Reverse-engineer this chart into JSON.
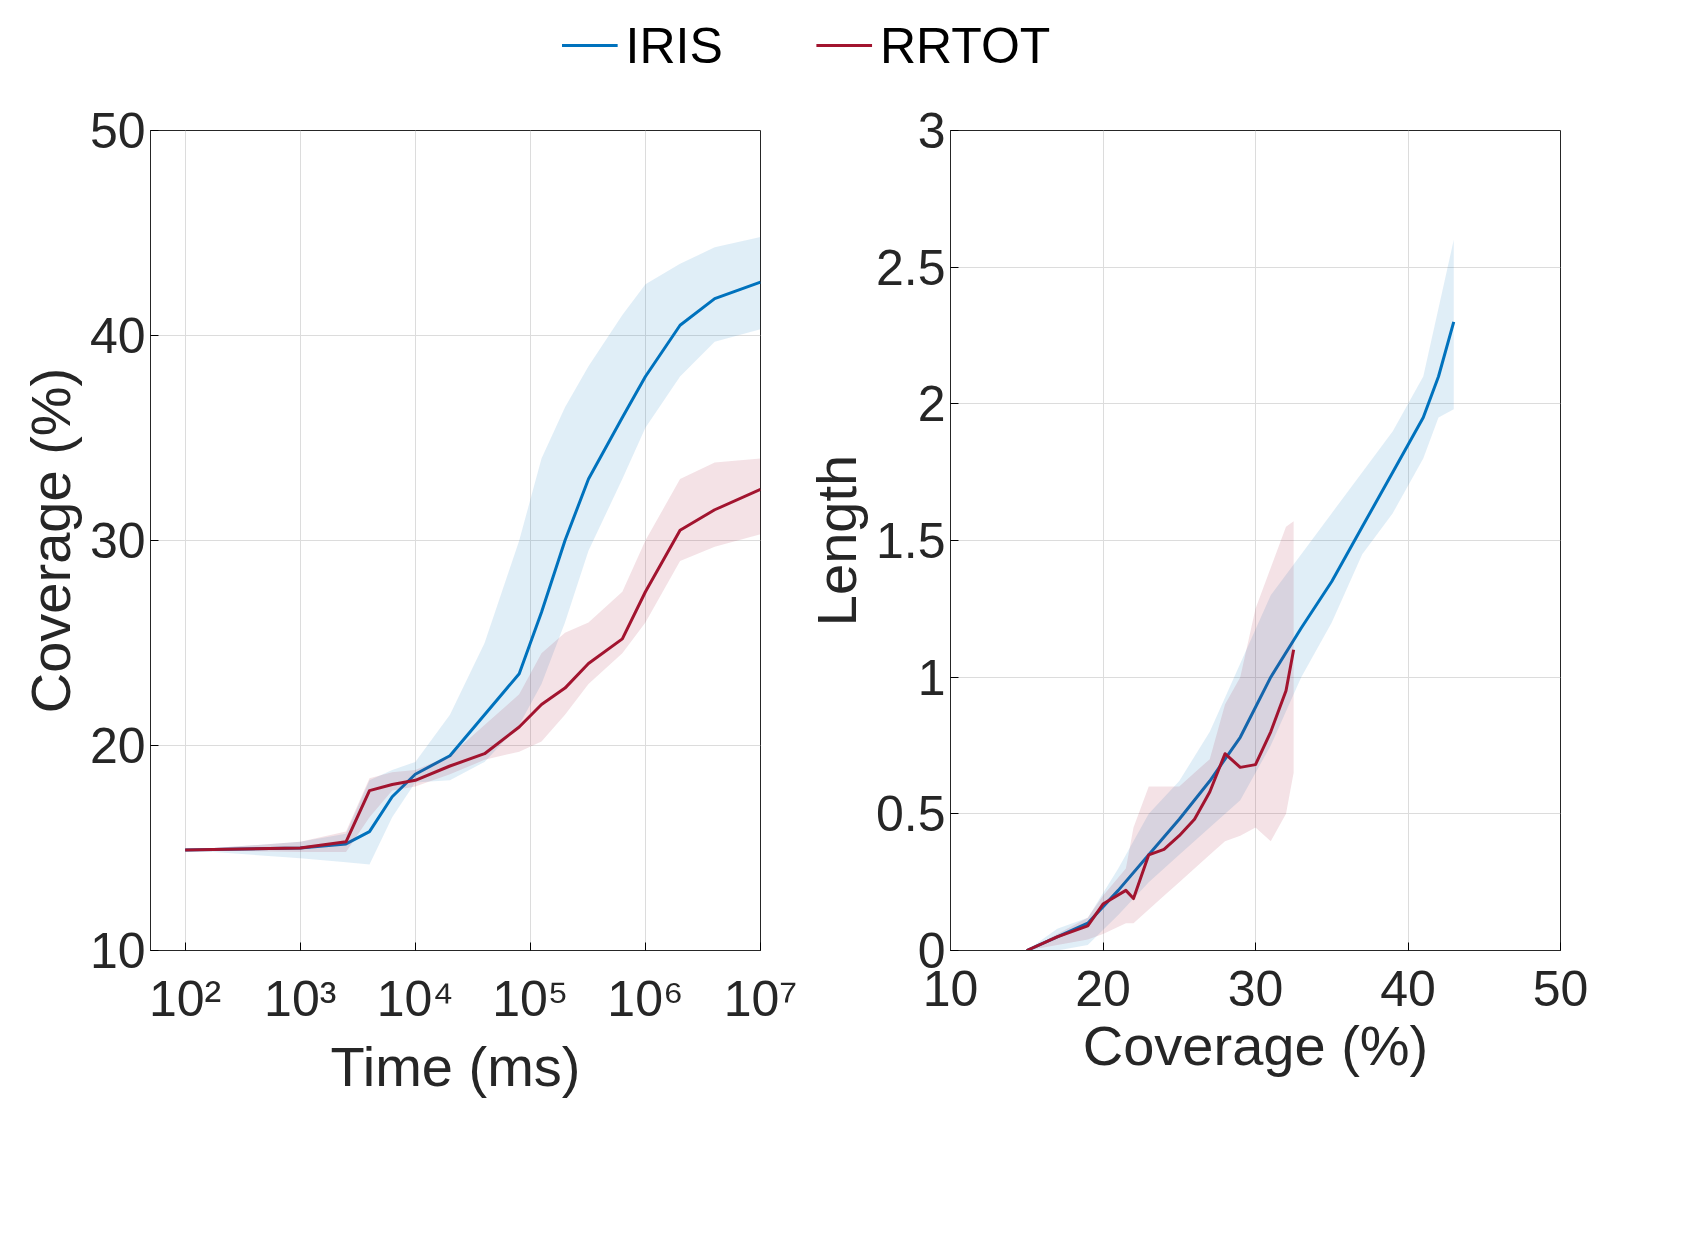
{
  "chart_data": [
    {
      "type": "line",
      "xlabel": "Time (ms)",
      "ylabel": "Coverage (%)",
      "log": "x",
      "xlim": [
        50,
        10000000
      ],
      "ylim": [
        10,
        50
      ],
      "xticks": [
        {
          "value": 100,
          "label": "10²"
        },
        {
          "value": 1000,
          "label": "10³"
        },
        {
          "value": 10000,
          "label": "10⁴"
        },
        {
          "value": 100000,
          "label": "10⁵"
        },
        {
          "value": 1000000,
          "label": "10⁶"
        },
        {
          "value": 10000000,
          "label": "10⁷"
        }
      ],
      "yticks": [
        10,
        20,
        30,
        40,
        50
      ],
      "grid": true,
      "legend": "top",
      "x": [
        100,
        1000,
        2500,
        4000,
        6300,
        10000,
        20000,
        40000,
        80000,
        125000,
        200000,
        320000,
        630000,
        1000000,
        2000000,
        4000000,
        10000000
      ],
      "series": [
        {
          "name": "IRIS",
          "color": "#0072bd",
          "values": [
            14.9,
            15.0,
            15.2,
            15.8,
            17.5,
            18.6,
            19.5,
            21.5,
            23.5,
            26.5,
            30,
            33,
            36,
            38,
            40.5,
            41.8,
            42.6
          ],
          "upper": [
            14.9,
            15.3,
            15.7,
            18.3,
            18.8,
            19.2,
            21.5,
            25,
            30,
            34,
            36.5,
            38.5,
            41,
            42.5,
            43.5,
            44.3,
            44.8
          ],
          "lower": [
            14.9,
            14.5,
            14.3,
            14.2,
            16.5,
            18.2,
            18.3,
            19.2,
            21,
            23,
            26,
            29.5,
            33,
            35.5,
            38,
            39.7,
            40.3
          ]
        },
        {
          "name": "RRTOT",
          "color": "#a2142f",
          "values": [
            14.9,
            15.0,
            15.3,
            17.8,
            18.1,
            18.3,
            19.0,
            19.6,
            20.9,
            22,
            22.8,
            24,
            25.2,
            27.5,
            30.5,
            31.5,
            32.5
          ],
          "upper": [
            14.9,
            15.3,
            15.8,
            18.4,
            18.7,
            18.8,
            19.5,
            21,
            22.5,
            24.5,
            25.5,
            26,
            27.5,
            30,
            33,
            33.8,
            34
          ],
          "lower": [
            14.9,
            14.8,
            14.8,
            16.5,
            17.8,
            18,
            18.6,
            19.3,
            19.7,
            20.2,
            21.5,
            23,
            24.5,
            26,
            29,
            29.7,
            30.3
          ]
        }
      ]
    },
    {
      "type": "line",
      "xlabel": "Coverage (%)",
      "ylabel": "Length",
      "xlim": [
        10,
        50
      ],
      "ylim": [
        0,
        3
      ],
      "xticks": [
        10,
        20,
        30,
        40,
        50
      ],
      "yticks": [
        0,
        0.5,
        1,
        1.5,
        2,
        2.5,
        3
      ],
      "grid": true,
      "series": [
        {
          "color": "#0072bd",
          "x": [
            15,
            17,
            19,
            21,
            23,
            25,
            27,
            29,
            31,
            33,
            35,
            37,
            39,
            41,
            42,
            43
          ],
          "values": [
            0,
            0.05,
            0.1,
            0.22,
            0.35,
            0.48,
            0.62,
            0.78,
            1.0,
            1.18,
            1.35,
            1.55,
            1.75,
            1.95,
            2.1,
            2.3
          ],
          "upper": [
            0,
            0.08,
            0.12,
            0.3,
            0.5,
            0.62,
            0.8,
            1.05,
            1.3,
            1.45,
            1.6,
            1.75,
            1.9,
            2.1,
            2.35,
            2.6
          ],
          "lower": [
            0,
            0,
            0.02,
            0.13,
            0.25,
            0.35,
            0.45,
            0.55,
            0.75,
            1.0,
            1.2,
            1.45,
            1.6,
            1.8,
            1.95,
            1.98
          ]
        },
        {
          "color": "#a2142f",
          "x": [
            15,
            17,
            19,
            20,
            21.5,
            22,
            23,
            24,
            25,
            26,
            27,
            28,
            29,
            30,
            31,
            32,
            32.5
          ],
          "values": [
            0,
            0.05,
            0.09,
            0.17,
            0.22,
            0.19,
            0.35,
            0.37,
            0.42,
            0.48,
            0.58,
            0.72,
            0.67,
            0.68,
            0.8,
            0.95,
            1.1
          ],
          "upper": [
            0,
            0.06,
            0.12,
            0.2,
            0.3,
            0.45,
            0.6,
            0.6,
            0.6,
            0.65,
            0.7,
            0.9,
            1.0,
            1.25,
            1.4,
            1.55,
            1.57
          ],
          "lower": [
            0,
            0.02,
            0.04,
            0.06,
            0.1,
            0.1,
            0.15,
            0.2,
            0.25,
            0.3,
            0.35,
            0.4,
            0.42,
            0.45,
            0.4,
            0.5,
            0.65
          ]
        }
      ]
    }
  ]
}
